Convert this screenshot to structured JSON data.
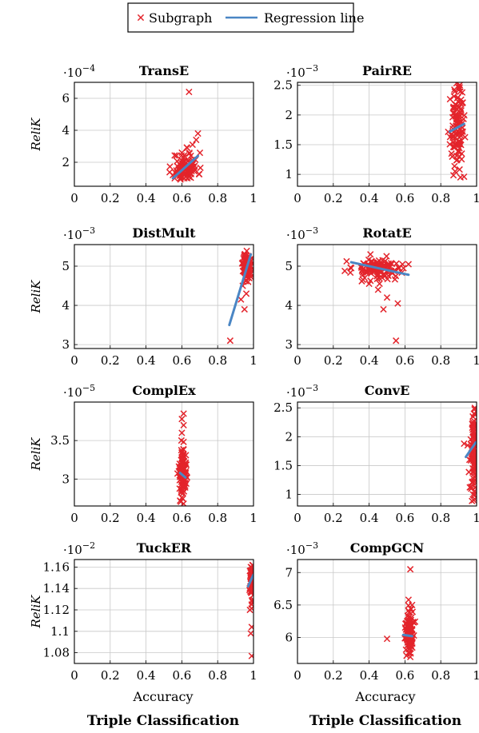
{
  "legend": {
    "scatter_label": "Subgraph",
    "line_label": "Regression line"
  },
  "colors": {
    "marker": "#e3242b",
    "regression": "#4a86c4",
    "grid": "#c8c8c8"
  },
  "x_axis_label": "Accuracy",
  "bottom_label": "Triple Classification",
  "y_axis_label": "ReliK",
  "chart_data": [
    {
      "type": "scatter",
      "title": "TransE",
      "exponent": "-4",
      "xlim": [
        0,
        1
      ],
      "ylim": [
        0.5,
        7.0
      ],
      "xticks": [
        0,
        0.2,
        0.4,
        0.6,
        0.8,
        1
      ],
      "xtick_labels": [
        "0",
        "0.2",
        "0.4",
        "0.6",
        "0.8",
        "1"
      ],
      "yticks": [
        2,
        4,
        6
      ],
      "ytick_labels": [
        "2",
        "4",
        "6"
      ],
      "show_ylabel": true,
      "show_xlabel": false,
      "cluster": {
        "x_center": 0.62,
        "x_spread": 0.035,
        "y_center": 1.7,
        "y_spread": 0.45,
        "count": 90,
        "seed": 11
      },
      "points": [
        [
          0.64,
          6.4
        ],
        [
          0.69,
          3.8
        ],
        [
          0.68,
          3.4
        ],
        [
          0.66,
          3.1
        ],
        [
          0.63,
          2.9
        ],
        [
          0.56,
          1.0
        ],
        [
          0.58,
          1.3
        ],
        [
          0.6,
          2.6
        ],
        [
          0.65,
          2.4
        ]
      ],
      "regression": [
        [
          0.55,
          1.0
        ],
        [
          0.69,
          2.4
        ]
      ]
    },
    {
      "type": "scatter",
      "title": "PairRE",
      "exponent": "-3",
      "xlim": [
        0,
        1
      ],
      "ylim": [
        0.8,
        2.55
      ],
      "xticks": [
        0,
        0.2,
        0.4,
        0.6,
        0.8,
        1
      ],
      "xtick_labels": [
        "0",
        "0.2",
        "0.4",
        "0.6",
        "0.8",
        "1"
      ],
      "yticks": [
        1,
        1.5,
        2,
        2.5
      ],
      "ytick_labels": [
        "1",
        "1.5",
        "2",
        "2.5"
      ],
      "show_ylabel": false,
      "show_xlabel": false,
      "cluster": {
        "x_center": 0.89,
        "x_spread": 0.018,
        "y_center": 1.8,
        "y_spread": 0.32,
        "count": 110,
        "seed": 23
      },
      "points": [
        [
          0.9,
          2.42
        ],
        [
          0.92,
          2.38
        ],
        [
          0.91,
          0.95
        ],
        [
          0.93,
          0.96
        ],
        [
          0.88,
          1.05
        ],
        [
          0.86,
          1.35
        ],
        [
          0.92,
          2.2
        ]
      ],
      "regression": [
        [
          0.85,
          1.72
        ],
        [
          0.93,
          1.85
        ]
      ]
    },
    {
      "type": "scatter",
      "title": "DistMult",
      "exponent": "-3",
      "xlim": [
        0,
        1
      ],
      "ylim": [
        2.9,
        5.55
      ],
      "xticks": [
        0,
        0.2,
        0.4,
        0.6,
        0.8,
        1
      ],
      "xtick_labels": [
        "0",
        "0.2",
        "0.4",
        "0.6",
        "0.8",
        "1"
      ],
      "yticks": [
        3,
        4,
        5
      ],
      "ytick_labels": [
        "3",
        "4",
        "5"
      ],
      "show_ylabel": true,
      "show_xlabel": false,
      "cluster": {
        "x_center": 0.965,
        "x_spread": 0.012,
        "y_center": 5.0,
        "y_spread": 0.16,
        "count": 90,
        "seed": 37
      },
      "points": [
        [
          0.87,
          3.1
        ],
        [
          0.95,
          3.9
        ],
        [
          0.93,
          4.15
        ],
        [
          0.96,
          4.3
        ],
        [
          0.94,
          4.5
        ],
        [
          0.97,
          4.6
        ]
      ],
      "regression": [
        [
          0.865,
          3.5
        ],
        [
          0.985,
          5.3
        ]
      ]
    },
    {
      "type": "scatter",
      "title": "RotatE",
      "exponent": "-3",
      "xlim": [
        0,
        1
      ],
      "ylim": [
        2.9,
        5.55
      ],
      "xticks": [
        0,
        0.2,
        0.4,
        0.6,
        0.8,
        1
      ],
      "xtick_labels": [
        "0",
        "0.2",
        "0.4",
        "0.6",
        "0.8",
        "1"
      ],
      "yticks": [
        3,
        4,
        5
      ],
      "ytick_labels": [
        "3",
        "4",
        "5"
      ],
      "show_ylabel": false,
      "show_xlabel": false,
      "cluster": {
        "x_center": 0.45,
        "x_spread": 0.07,
        "y_center": 4.95,
        "y_spread": 0.14,
        "count": 120,
        "seed": 53
      },
      "points": [
        [
          0.55,
          3.1
        ],
        [
          0.56,
          4.05
        ],
        [
          0.48,
          3.9
        ],
        [
          0.5,
          4.2
        ],
        [
          0.45,
          4.4
        ],
        [
          0.62,
          5.05
        ],
        [
          0.3,
          4.95
        ],
        [
          0.4,
          4.55
        ]
      ],
      "regression": [
        [
          0.3,
          5.1
        ],
        [
          0.62,
          4.78
        ]
      ]
    },
    {
      "type": "scatter",
      "title": "ComplEx",
      "exponent": "-5",
      "xlim": [
        0,
        1
      ],
      "ylim": [
        2.65,
        4.0
      ],
      "xticks": [
        0,
        0.2,
        0.4,
        0.6,
        0.8,
        1
      ],
      "xtick_labels": [
        "0",
        "0.2",
        "0.4",
        "0.6",
        "0.8",
        "1"
      ],
      "yticks": [
        3,
        3.5
      ],
      "ytick_labels": [
        "3",
        "3.5"
      ],
      "show_ylabel": true,
      "show_xlabel": false,
      "cluster": {
        "x_center": 0.605,
        "x_spread": 0.01,
        "y_center": 3.05,
        "y_spread": 0.17,
        "count": 100,
        "seed": 67
      },
      "points": [
        [
          0.61,
          3.85
        ],
        [
          0.6,
          3.78
        ],
        [
          0.61,
          3.7
        ],
        [
          0.6,
          3.6
        ],
        [
          0.59,
          2.72
        ],
        [
          0.61,
          2.68
        ]
      ],
      "regression": [
        [
          0.59,
          3.08
        ],
        [
          0.62,
          3.02
        ]
      ]
    },
    {
      "type": "scatter",
      "title": "ConvE",
      "exponent": "-3",
      "xlim": [
        0,
        1
      ],
      "ylim": [
        0.8,
        2.6
      ],
      "xticks": [
        0,
        0.2,
        0.4,
        0.6,
        0.8,
        1
      ],
      "xtick_labels": [
        "0",
        "0.2",
        "0.4",
        "0.6",
        "0.8",
        "1"
      ],
      "yticks": [
        1,
        1.5,
        2,
        2.5
      ],
      "ytick_labels": [
        "1",
        "1.5",
        "2",
        "2.5"
      ],
      "show_ylabel": false,
      "show_xlabel": false,
      "cluster": {
        "x_center": 0.985,
        "x_spread": 0.009,
        "y_center": 1.75,
        "y_spread": 0.35,
        "count": 100,
        "seed": 79
      },
      "points": [
        [
          0.99,
          2.5
        ],
        [
          0.985,
          2.4
        ],
        [
          0.99,
          0.92
        ],
        [
          0.98,
          1.0
        ],
        [
          0.95,
          1.85
        ],
        [
          0.93,
          1.88
        ],
        [
          0.96,
          1.6
        ],
        [
          0.97,
          1.1
        ]
      ],
      "regression": [
        [
          0.94,
          1.65
        ],
        [
          0.995,
          1.9
        ]
      ]
    },
    {
      "type": "scatter",
      "title": "TuckER",
      "exponent": "-2",
      "xlim": [
        0,
        1
      ],
      "ylim": [
        1.07,
        1.167
      ],
      "xticks": [
        0,
        0.2,
        0.4,
        0.6,
        0.8,
        1
      ],
      "xtick_labels": [
        "0",
        "0.2",
        "0.4",
        "0.6",
        "0.8",
        "1"
      ],
      "yticks": [
        1.08,
        1.1,
        1.12,
        1.14,
        1.16
      ],
      "ytick_labels": [
        "1.08",
        "1.1",
        "1.12",
        "1.14",
        "1.16"
      ],
      "show_ylabel": true,
      "show_xlabel": true,
      "cluster": {
        "x_center": 0.99,
        "x_spread": 0.006,
        "y_center": 1.145,
        "y_spread": 0.008,
        "count": 100,
        "seed": 97
      },
      "points": [
        [
          0.99,
          1.077
        ],
        [
          0.985,
          1.098
        ],
        [
          0.99,
          1.104
        ],
        [
          0.98,
          1.12
        ],
        [
          0.99,
          1.125
        ],
        [
          0.985,
          1.16
        ],
        [
          0.995,
          1.162
        ]
      ],
      "regression": [
        [
          0.97,
          1.142
        ],
        [
          1.0,
          1.153
        ]
      ]
    },
    {
      "type": "scatter",
      "title": "CompGCN",
      "exponent": "-3",
      "xlim": [
        0,
        1
      ],
      "ylim": [
        5.6,
        7.2
      ],
      "xticks": [
        0,
        0.2,
        0.4,
        0.6,
        0.8,
        1
      ],
      "xtick_labels": [
        "0",
        "0.2",
        "0.4",
        "0.6",
        "0.8",
        "1"
      ],
      "yticks": [
        6,
        6.5,
        7
      ],
      "ytick_labels": [
        "6",
        "6.5",
        "7"
      ],
      "show_ylabel": false,
      "show_xlabel": true,
      "cluster": {
        "x_center": 0.625,
        "x_spread": 0.011,
        "y_center": 6.05,
        "y_spread": 0.16,
        "count": 110,
        "seed": 113
      },
      "points": [
        [
          0.63,
          7.05
        ],
        [
          0.62,
          6.58
        ],
        [
          0.64,
          6.5
        ],
        [
          0.5,
          5.98
        ],
        [
          0.63,
          5.7
        ]
      ],
      "regression": [
        [
          0.59,
          6.04
        ],
        [
          0.64,
          6.02
        ]
      ]
    }
  ]
}
